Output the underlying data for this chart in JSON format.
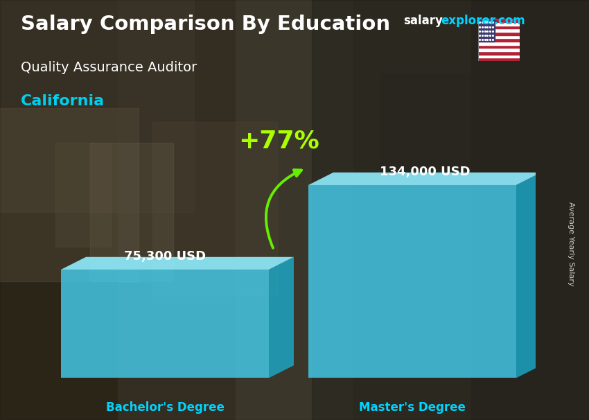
{
  "title1": "Salary Comparison By Education",
  "title2": "Quality Assurance Auditor",
  "title3": "California",
  "site_text": "salary",
  "site_text2": "explorer.com",
  "categories": [
    "Bachelor's Degree",
    "Master's Degree"
  ],
  "values": [
    75300,
    134000
  ],
  "labels": [
    "75,300 USD",
    "134,000 USD"
  ],
  "pct_change": "+77%",
  "bar_front_color": "#45d4f5",
  "bar_side_color": "#1ab0d0",
  "bar_top_color": "#90eeff",
  "bar_alpha": 0.78,
  "ylabel": "Average Yearly Salary",
  "title_color": "#ffffff",
  "subtitle_color": "#ffffff",
  "location_color": "#00cfee",
  "label_color": "#ffffff",
  "xticklabel_color": "#00d4ff",
  "pct_color": "#aaff00",
  "arc_color": "#66ee00",
  "site_color1": "#ffffff",
  "site_color2": "#00d4ff",
  "bg_color": "#3a3a3a",
  "overlay_alpha": 0.45,
  "bar_width": 0.42,
  "bar_depth_ratio": 0.12,
  "bar_depth_vert_ratio": 0.05,
  "ylim_max": 175000,
  "x_positions": [
    0.25,
    0.75
  ],
  "xlim": [
    0.0,
    1.0
  ]
}
